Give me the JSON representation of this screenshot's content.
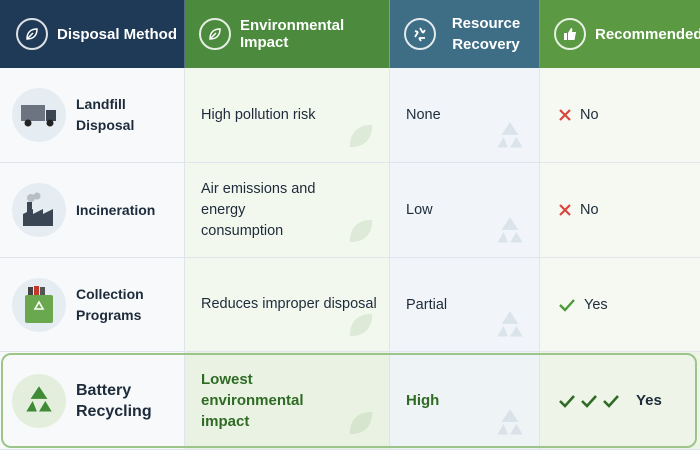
{
  "header": {
    "columns": [
      "Disposal Method",
      "Environmental Impact",
      "Resource Recovery",
      "Recommended"
    ]
  },
  "table": {
    "rows": [
      [
        "Landfill Disposal",
        "High pollution risk",
        "None",
        "No"
      ],
      [
        "Incineration",
        "Air emissions and energy consumption",
        "Low",
        "No"
      ],
      [
        "Collection Programs",
        "Reduces improper disposal",
        "Partial",
        "Yes"
      ],
      [
        "Battery Recycling",
        "Lowest environmental impact",
        "High",
        "Yes"
      ]
    ]
  }
}
